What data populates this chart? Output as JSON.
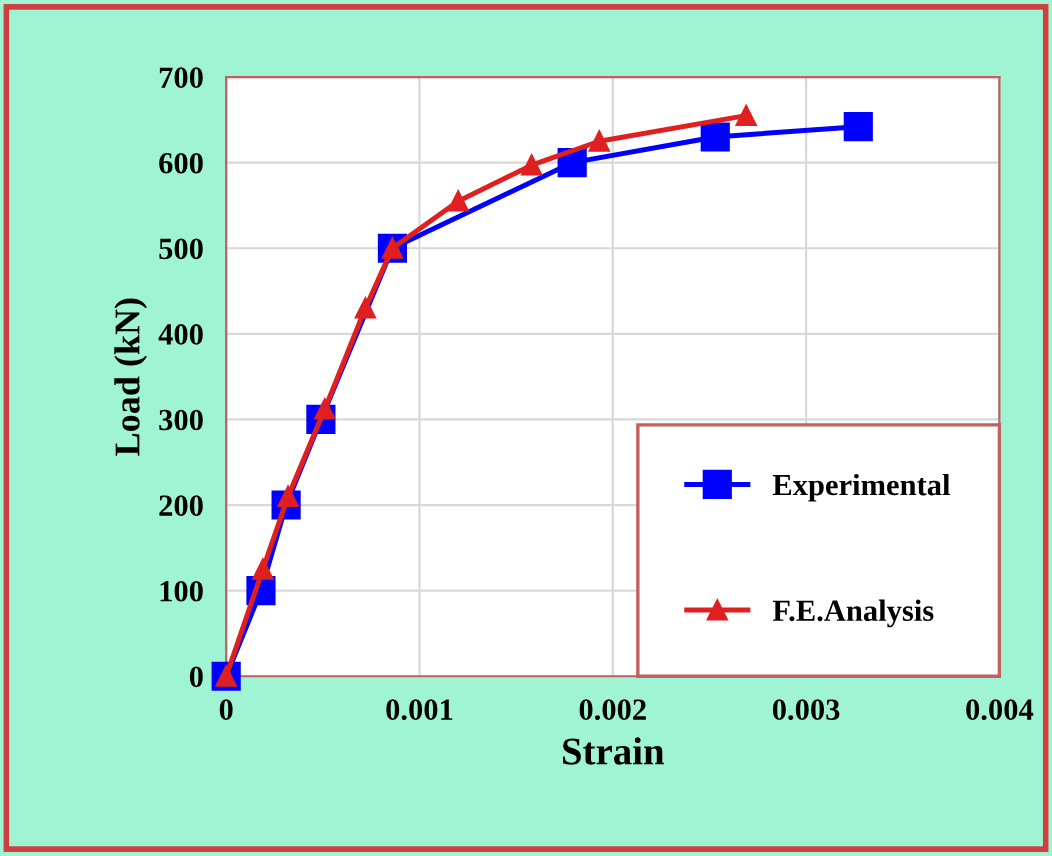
{
  "chart_data": {
    "type": "line",
    "xlabel": "Strain",
    "ylabel": "Load (kN)",
    "xlim": [
      0,
      0.004
    ],
    "xticks": [
      0,
      0.001,
      0.002,
      0.003,
      0.004
    ],
    "ylim": [
      0,
      700
    ],
    "yticks": [
      0,
      100,
      200,
      300,
      400,
      500,
      600,
      700
    ],
    "grid": true,
    "legend": "bottom right",
    "series": [
      {
        "name": "Experimental",
        "color": "#0000ff",
        "marker": "square",
        "x": [
          0,
          0.00018,
          0.00031,
          0.00049,
          0.00086,
          0.00179,
          0.00253,
          0.00327
        ],
        "values": [
          0,
          100,
          200,
          300,
          500,
          600,
          630,
          642
        ]
      },
      {
        "name": "F.E.Analysis",
        "color": "#e02020",
        "marker": "triangle",
        "x": [
          0,
          0.00019,
          0.00032,
          0.00051,
          0.00072,
          0.00086,
          0.0012,
          0.00158,
          0.00193,
          0.00269
        ],
        "values": [
          0,
          125,
          210,
          312,
          430,
          500,
          555,
          597,
          625,
          655
        ]
      }
    ]
  }
}
